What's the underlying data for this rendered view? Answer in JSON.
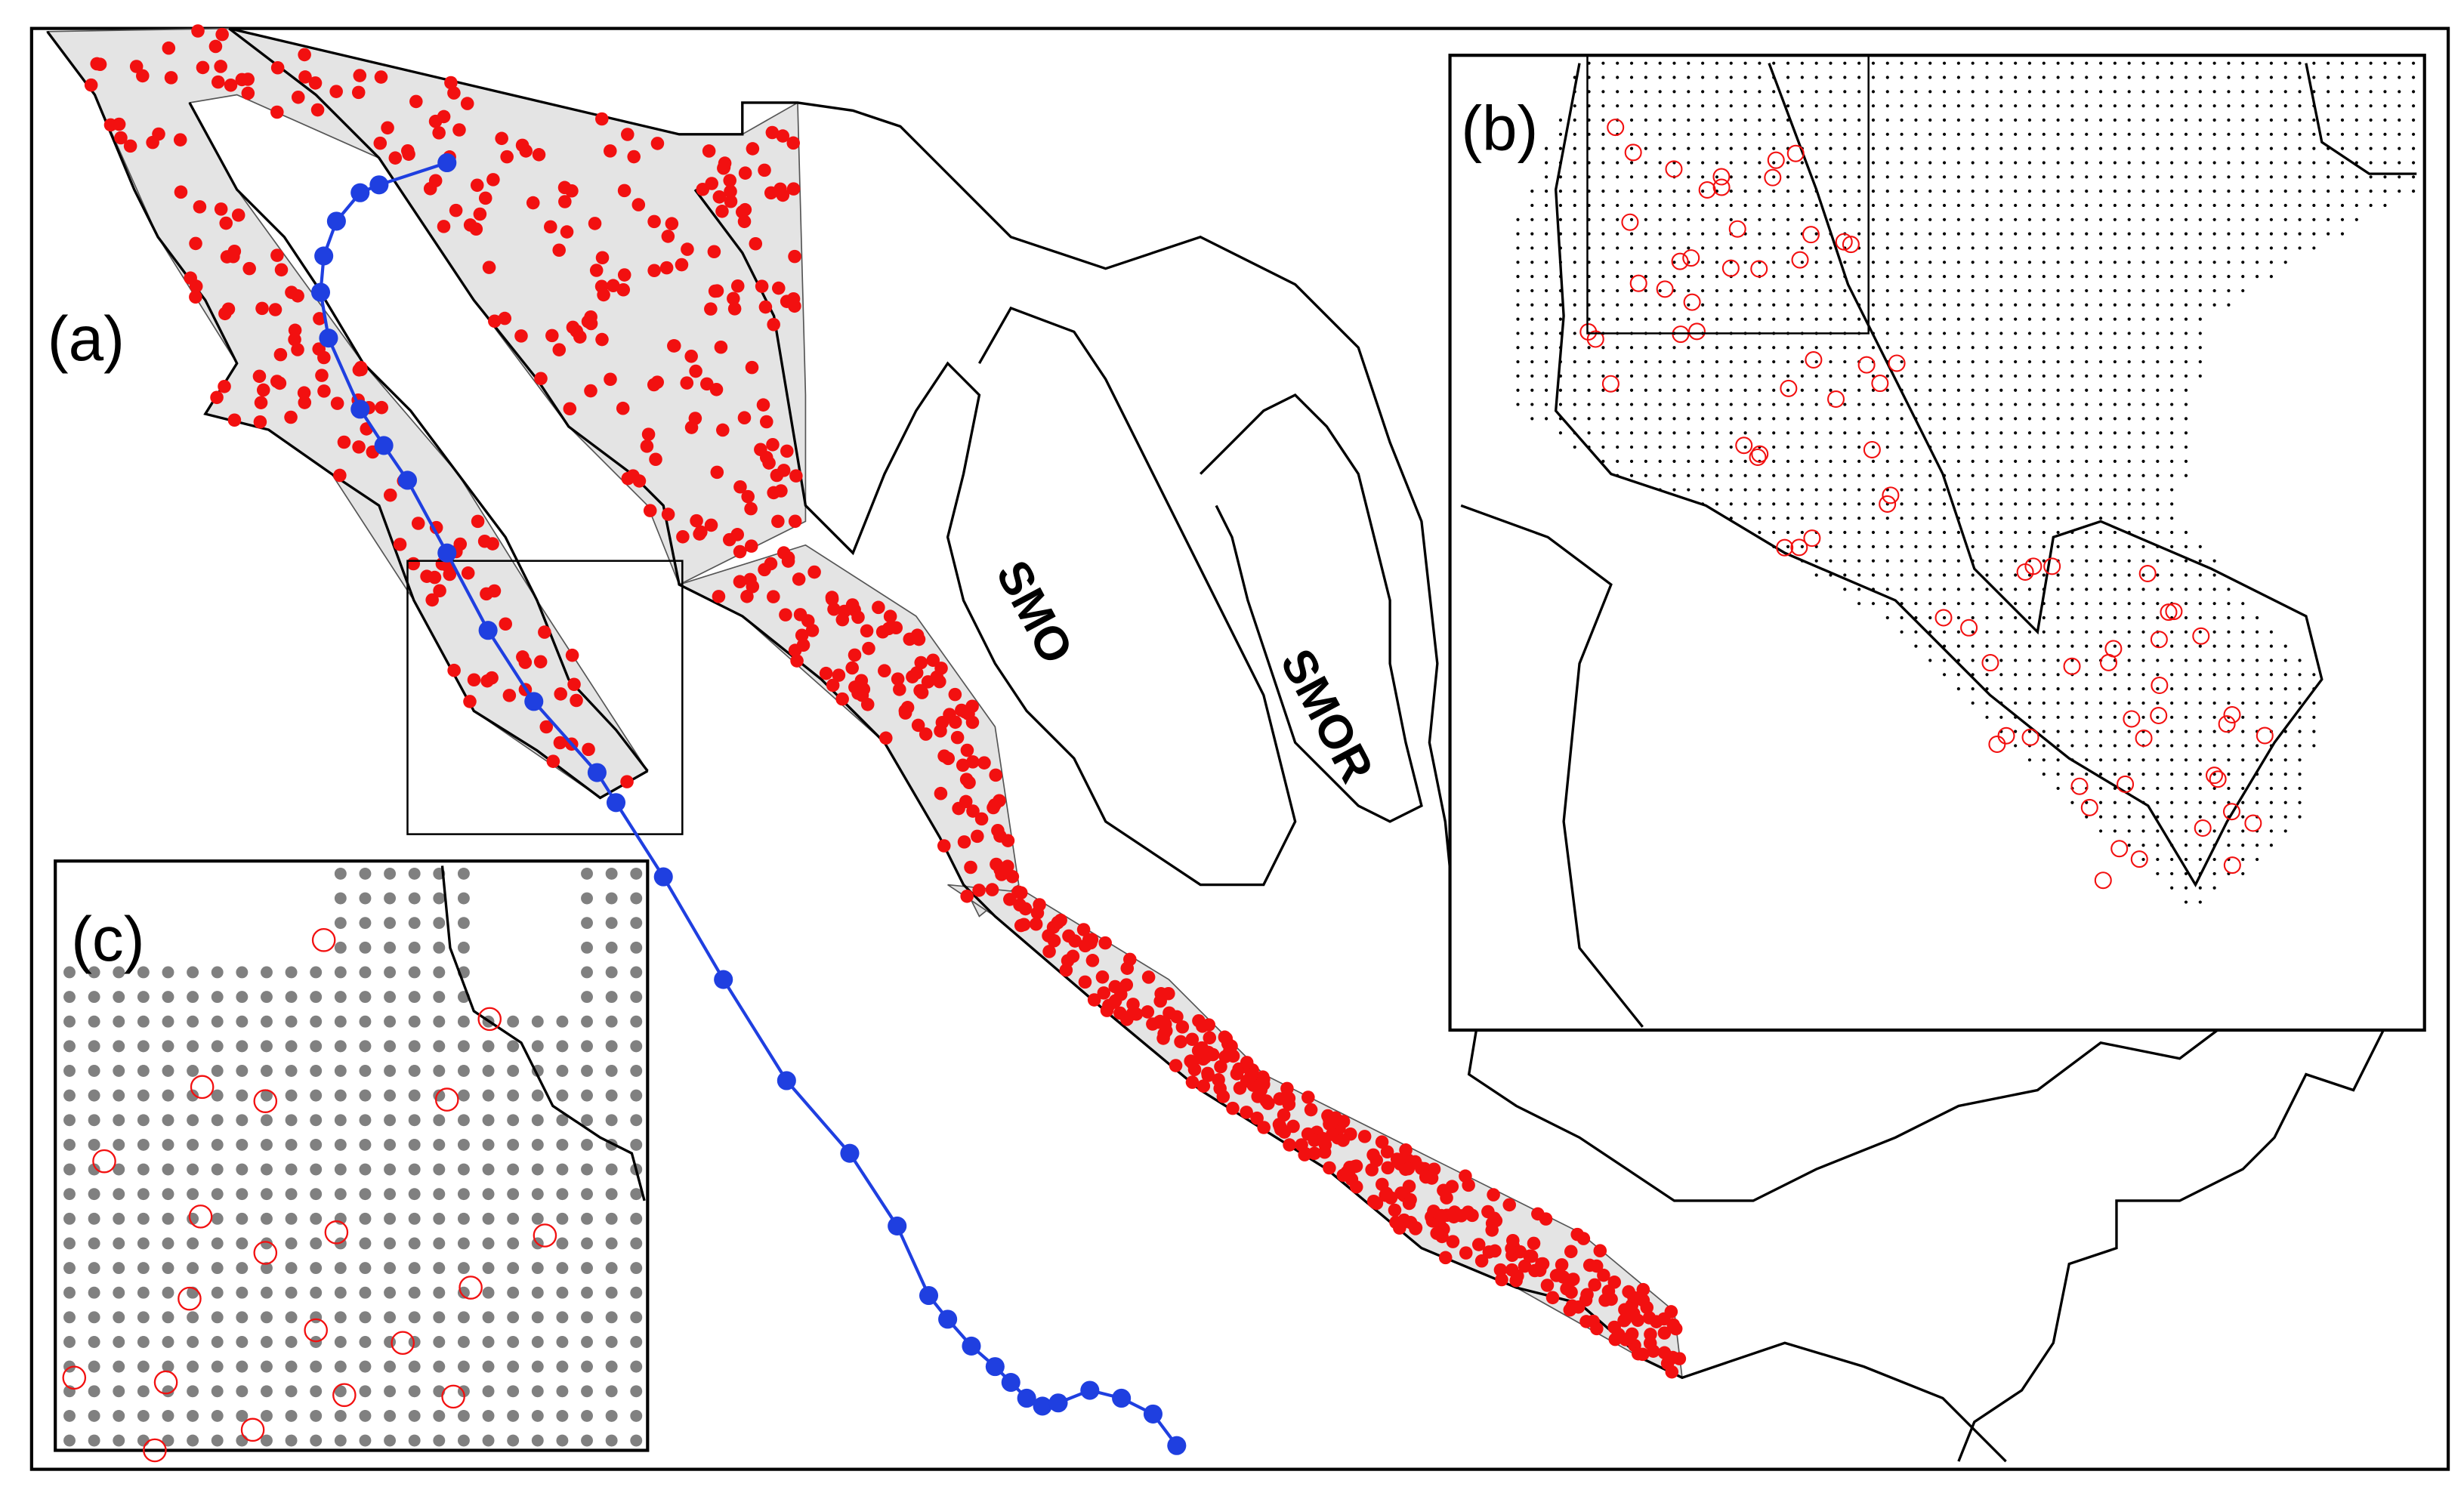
{
  "panels": [
    {
      "label": "(a)"
    },
    {
      "label": "(b)"
    },
    {
      "label": "(c)"
    }
  ],
  "regions": [
    {
      "label": "SMO"
    },
    {
      "label": "SMOR"
    }
  ]
}
